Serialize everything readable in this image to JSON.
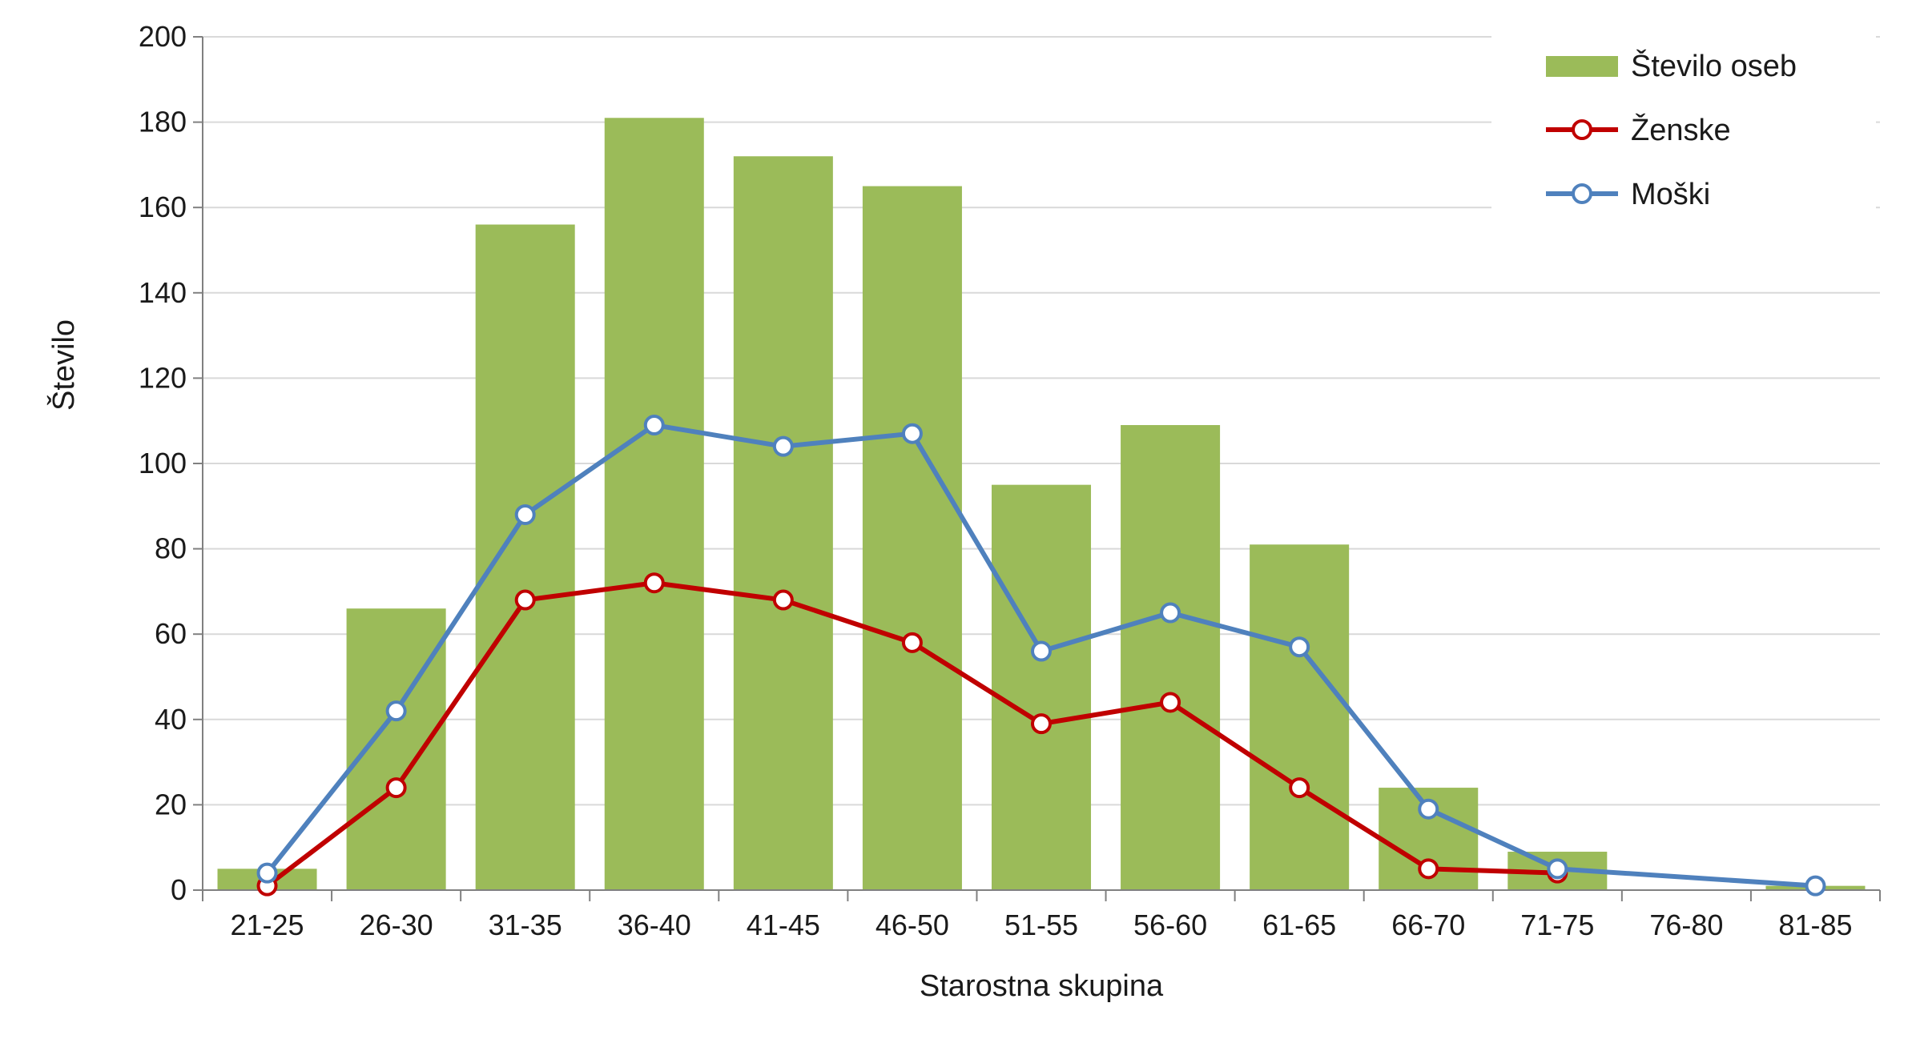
{
  "chart_data": {
    "type": "bar",
    "categories": [
      "21-25",
      "26-30",
      "31-35",
      "36-40",
      "41-45",
      "46-50",
      "51-55",
      "56-60",
      "61-65",
      "66-70",
      "71-75",
      "76-80",
      "81-85"
    ],
    "series": [
      {
        "name": "Število oseb",
        "type": "bar",
        "color": "#9BBB59",
        "values": [
          5,
          66,
          156,
          181,
          172,
          165,
          95,
          109,
          81,
          24,
          9,
          0,
          1
        ]
      },
      {
        "name": "Ženske",
        "type": "line",
        "color": "#C00000",
        "values": [
          1,
          24,
          68,
          72,
          68,
          58,
          39,
          44,
          24,
          5,
          4,
          null,
          null
        ]
      },
      {
        "name": "Moški",
        "type": "line",
        "color": "#4F81BD",
        "values": [
          4,
          42,
          88,
          109,
          104,
          107,
          56,
          65,
          57,
          19,
          5,
          null,
          1
        ]
      }
    ],
    "title": "",
    "xlabel": "Starostna skupina",
    "ylabel": "Število",
    "ylim": [
      0,
      200
    ],
    "yticks": [
      "0",
      "20",
      "40",
      "60",
      "80",
      "100",
      "120",
      "140",
      "160",
      "180",
      "200"
    ],
    "grid": true,
    "legend_position": "top-right"
  }
}
